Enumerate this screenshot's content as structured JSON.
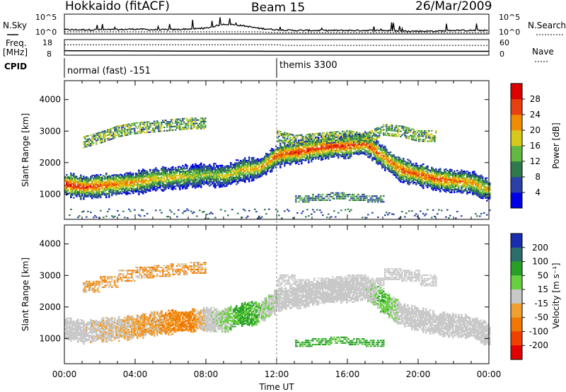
{
  "header": {
    "station": "Hokkaido (fitACF)",
    "beam": "Beam 15",
    "date": "26/Mar/2009"
  },
  "params": {
    "nsky_label": "N.Sky",
    "nsearch_label": "N.Search",
    "freq_label_1": "Freq.",
    "freq_label_2": "[MHz]",
    "nave_label": "Nave",
    "cpid_label": "CPID",
    "noise_ticks": [
      "10^5",
      "10^0"
    ],
    "freq_ticks": [
      "18",
      "8"
    ],
    "nave_ticks": [
      "60",
      "0"
    ],
    "cpid_segments": [
      {
        "label": "normal (fast) -151",
        "start_hour": 0.0,
        "end_hour": 12.0
      },
      {
        "label": "themis 3300",
        "start_hour": 12.0,
        "end_hour": 24.0
      }
    ]
  },
  "axes": {
    "ylabel": "Slant Range [km]",
    "yticks": [
      "1000",
      "2000",
      "3000",
      "4000"
    ],
    "ylim": [
      200,
      4600
    ],
    "xlabel": "Time UT",
    "xticks": [
      "00:00",
      "04:00",
      "08:00",
      "12:00",
      "16:00",
      "20:00",
      "00:00"
    ],
    "xlim_hours": [
      0,
      24
    ]
  },
  "power_scale": {
    "label": "Power [dB]",
    "ticks": [
      "4",
      "8",
      "12",
      "16",
      "20",
      "24",
      "28"
    ],
    "colors": [
      "#0000e6",
      "#2a42a8",
      "#2f7a4a",
      "#62b840",
      "#d8c81a",
      "#f08c00",
      "#e84010",
      "#dd0000"
    ]
  },
  "velocity_scale": {
    "label": "Velocity [m s⁻¹]",
    "ticks": [
      "200",
      "100",
      "50",
      "15",
      "-15",
      "-50",
      "-100",
      "-200"
    ],
    "colors": [
      "#1a2cb0",
      "#2a6e6e",
      "#28a028",
      "#68d040",
      "#c8c8c8",
      "#f0a030",
      "#f07800",
      "#f04000",
      "#e00000"
    ]
  },
  "chart_data": [
    {
      "type": "line",
      "title": "N.Sky / N.Search",
      "x": [
        0,
        1,
        2,
        3,
        4,
        5,
        6,
        7,
        8,
        9,
        10,
        11,
        12,
        13,
        14,
        15,
        16,
        17,
        18,
        19,
        20,
        21,
        22,
        23,
        24
      ],
      "series": [
        {
          "name": "N.Sky",
          "values": [
            4,
            4,
            4,
            4,
            5,
            4,
            4,
            5,
            6,
            12,
            10,
            6,
            4,
            3,
            3,
            3,
            3,
            3,
            3,
            2,
            2,
            2,
            3,
            3,
            3
          ]
        },
        {
          "name": "N.Search",
          "values": [
            2,
            2,
            2,
            2,
            2,
            2,
            2,
            2,
            2,
            2,
            2,
            2,
            1,
            1,
            1,
            1,
            1,
            1,
            1,
            1,
            1,
            1,
            1,
            1,
            1
          ]
        }
      ]
    },
    {
      "type": "line",
      "title": "Freq. / Nave",
      "x": [
        0,
        8,
        12,
        12.2,
        24
      ],
      "series": [
        {
          "name": "Freq.",
          "values": [
            10.9,
            10.6,
            10.5,
            10.5,
            10.5
          ]
        },
        {
          "name": "Nave",
          "values": [
            40,
            40,
            40,
            38,
            38
          ]
        }
      ]
    },
    {
      "type": "heatmap",
      "title": "Power [dB]",
      "x_hours": [
        0,
        1,
        2,
        3,
        4,
        5,
        6,
        7,
        8,
        9,
        10,
        11,
        12,
        13,
        14,
        15,
        16,
        17,
        18,
        19,
        20,
        21,
        22,
        23,
        24
      ],
      "center_range_km": [
        1300,
        1200,
        1250,
        1300,
        1350,
        1450,
        1500,
        1550,
        1600,
        1550,
        1750,
        1800,
        2200,
        2300,
        2400,
        2500,
        2500,
        2600,
        2150,
        1750,
        1600,
        1450,
        1400,
        1350,
        1100
      ],
      "peak_power_db": [
        30,
        28,
        26,
        24,
        22,
        20,
        20,
        18,
        16,
        18,
        20,
        22,
        26,
        28,
        28,
        29,
        28,
        28,
        24,
        26,
        26,
        26,
        24,
        22,
        20
      ],
      "upper_echo_km": [
        null,
        2700,
        2850,
        3050,
        3150,
        3200,
        3250,
        3300,
        null,
        null,
        null,
        null,
        2900,
        2750,
        2800,
        2850,
        2900,
        2800,
        3100,
        3050,
        2900,
        null,
        null,
        null,
        null
      ],
      "lower_echo_km": [
        null,
        null,
        null,
        null,
        null,
        null,
        null,
        null,
        null,
        null,
        null,
        null,
        null,
        900,
        950,
        1000,
        950,
        900,
        null,
        null,
        null,
        null,
        null,
        null,
        null
      ],
      "ylim": [
        200,
        4600
      ]
    },
    {
      "type": "heatmap",
      "title": "Velocity [m s⁻¹]",
      "x_hours": [
        0,
        1,
        2,
        3,
        4,
        5,
        6,
        7,
        8,
        9,
        10,
        11,
        12,
        13,
        14,
        15,
        16,
        17,
        18,
        19,
        20,
        21,
        22,
        23,
        24
      ],
      "center_range_km": [
        1300,
        1200,
        1250,
        1300,
        1350,
        1450,
        1500,
        1550,
        1600,
        1550,
        1750,
        1800,
        2200,
        2300,
        2400,
        2500,
        2500,
        2600,
        2150,
        1750,
        1600,
        1450,
        1400,
        1350,
        1100
      ],
      "velocity_ms": [
        0,
        0,
        -10,
        -10,
        -20,
        -20,
        -30,
        -40,
        0,
        10,
        40,
        20,
        0,
        0,
        0,
        0,
        0,
        0,
        30,
        0,
        0,
        0,
        0,
        0,
        0
      ],
      "ylim": [
        200,
        4600
      ]
    }
  ]
}
